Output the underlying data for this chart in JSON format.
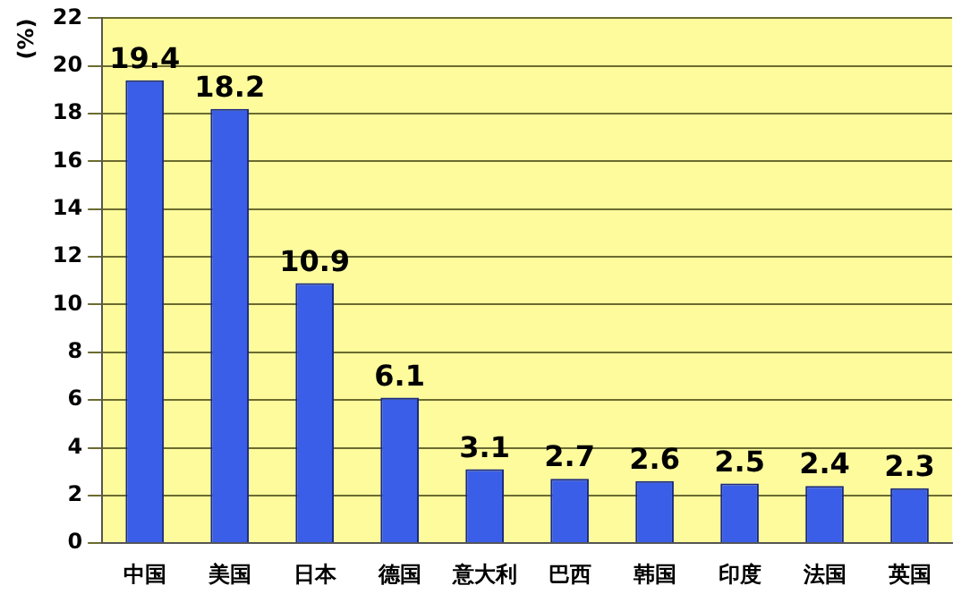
{
  "chart_data": {
    "type": "bar",
    "ylabel": "(%)",
    "categories": [
      "中国",
      "美国",
      "日本",
      "德国",
      "意大利",
      "巴西",
      "韩国",
      "印度",
      "法国",
      "英国"
    ],
    "values": [
      19.4,
      18.2,
      10.9,
      6.1,
      3.1,
      2.7,
      2.6,
      2.5,
      2.4,
      2.3
    ],
    "color": "#3a5ee8",
    "ylim": [
      0,
      22
    ],
    "yticks": [
      0,
      2,
      4,
      6,
      8,
      10,
      12,
      14,
      16,
      18,
      20,
      22
    ],
    "grid": "y",
    "data_labels": true,
    "legend": false
  }
}
